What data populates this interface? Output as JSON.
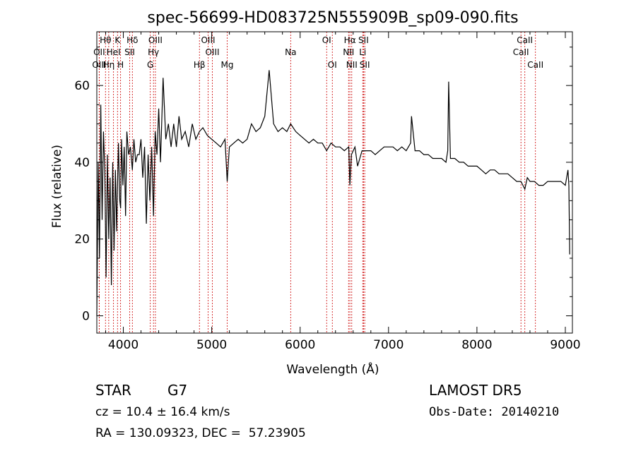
{
  "chart_data": {
    "type": "line",
    "title": "spec-56699-HD083725N555909B_sp09-090.fits",
    "xlabel": "Wavelength (Å)",
    "ylabel": "Flux (relative)",
    "xlim": [
      3700,
      9080
    ],
    "ylim": [
      -4.5,
      74
    ],
    "xticks": [
      4000,
      5000,
      6000,
      7000,
      8000,
      9000
    ],
    "yticks": [
      0,
      20,
      40,
      60
    ],
    "grid": false,
    "line_color": "#000000",
    "marker_color": "#cc0000",
    "spectral_lines": [
      {
        "name": "Hθ",
        "wavelength": 3798,
        "row": 0
      },
      {
        "name": "OII",
        "wavelength": 3727,
        "row": 1
      },
      {
        "name": "OIII",
        "wavelength": 3727,
        "row": 2
      },
      {
        "name": "K",
        "wavelength": 3934,
        "row": 0
      },
      {
        "name": "HeI",
        "wavelength": 3889,
        "row": 1
      },
      {
        "name": "Hη",
        "wavelength": 3835,
        "row": 2
      },
      {
        "name": "H",
        "wavelength": 3969,
        "row": 2
      },
      {
        "name": "Hδ",
        "wavelength": 4102,
        "row": 0
      },
      {
        "name": "SII",
        "wavelength": 4072,
        "row": 1
      },
      {
        "name": "OIII",
        "wavelength": 4363,
        "row": 0
      },
      {
        "name": "Hγ",
        "wavelength": 4341,
        "row": 1
      },
      {
        "name": "G",
        "wavelength": 4305,
        "row": 2
      },
      {
        "name": "OIII",
        "wavelength": 4959,
        "row": 0
      },
      {
        "name": "OIII",
        "wavelength": 5007,
        "row": 1
      },
      {
        "name": "Hβ",
        "wavelength": 4861,
        "row": 2
      },
      {
        "name": "Mg",
        "wavelength": 5175,
        "row": 2
      },
      {
        "name": "Na",
        "wavelength": 5893,
        "row": 1
      },
      {
        "name": "OI",
        "wavelength": 6300,
        "row": 0
      },
      {
        "name": "OI",
        "wavelength": 6364,
        "row": 2
      },
      {
        "name": "Hα",
        "wavelength": 6563,
        "row": 0
      },
      {
        "name": "NII",
        "wavelength": 6548,
        "row": 1
      },
      {
        "name": "NII",
        "wavelength": 6584,
        "row": 2
      },
      {
        "name": "SII",
        "wavelength": 6717,
        "row": 0
      },
      {
        "name": "Li",
        "wavelength": 6708,
        "row": 1
      },
      {
        "name": "SII",
        "wavelength": 6731,
        "row": 2
      },
      {
        "name": "CaII",
        "wavelength": 8542,
        "row": 0
      },
      {
        "name": "CaII",
        "wavelength": 8498,
        "row": 1
      },
      {
        "name": "CaII",
        "wavelength": 8662,
        "row": 2
      }
    ],
    "series": [
      {
        "x": [
          3700,
          3715,
          3730,
          3745,
          3760,
          3775,
          3790,
          3805,
          3820,
          3835,
          3850,
          3865,
          3880,
          3895,
          3910,
          3925,
          3934,
          3945,
          3960,
          3969,
          3980,
          3995,
          4010,
          4025,
          4040,
          4060,
          4080,
          4102,
          4120,
          4140,
          4160,
          4180,
          4200,
          4220,
          4240,
          4260,
          4280,
          4300,
          4320,
          4341,
          4360,
          4380,
          4400,
          4420,
          4450,
          4480,
          4510,
          4540,
          4570,
          4600,
          4630,
          4660,
          4700,
          4740,
          4780,
          4820,
          4861,
          4900,
          4950,
          5000,
          5050,
          5100,
          5150,
          5175,
          5200,
          5250,
          5300,
          5350,
          5400,
          5450,
          5500,
          5550,
          5600,
          5650,
          5700,
          5750,
          5800,
          5850,
          5893,
          5950,
          6000,
          6050,
          6100,
          6150,
          6200,
          6250,
          6300,
          6350,
          6400,
          6450,
          6500,
          6550,
          6563,
          6580,
          6620,
          6650,
          6700,
          6750,
          6800,
          6850,
          6900,
          6950,
          7000,
          7050,
          7100,
          7150,
          7200,
          7250,
          7260,
          7300,
          7350,
          7400,
          7450,
          7500,
          7550,
          7600,
          7650,
          7670,
          7680,
          7700,
          7750,
          7800,
          7850,
          7900,
          7950,
          8000,
          8050,
          8100,
          8150,
          8200,
          8250,
          8300,
          8350,
          8400,
          8450,
          8498,
          8542,
          8570,
          8600,
          8650,
          8700,
          8750,
          8800,
          8850,
          8900,
          8950,
          9000,
          9030,
          9040,
          9050
        ],
        "y": [
          0,
          40,
          15,
          55,
          25,
          48,
          38,
          10,
          42,
          20,
          36,
          8,
          40,
          17,
          38,
          22,
          34,
          45,
          30,
          28,
          46,
          34,
          44,
          26,
          48,
          42,
          44,
          38,
          46,
          40,
          42,
          42,
          46,
          36,
          44,
          24,
          42,
          30,
          44,
          26,
          48,
          42,
          54,
          40,
          62,
          46,
          50,
          44,
          50,
          44,
          52,
          46,
          48,
          44,
          50,
          46,
          48,
          49,
          47,
          46,
          45,
          44,
          46,
          35,
          44,
          45,
          46,
          45,
          46,
          50,
          48,
          49,
          52,
          64,
          50,
          48,
          49,
          48,
          50,
          48,
          47,
          46,
          45,
          46,
          45,
          45,
          43,
          45,
          44,
          44,
          43,
          44,
          34,
          42,
          44,
          39,
          43,
          43,
          43,
          42,
          43,
          44,
          44,
          44,
          43,
          44,
          43,
          45,
          52,
          43,
          43,
          42,
          42,
          41,
          41,
          41,
          40,
          43,
          61,
          41,
          41,
          40,
          40,
          39,
          39,
          39,
          38,
          37,
          38,
          38,
          37,
          37,
          37,
          36,
          35,
          35,
          33,
          36,
          35,
          35,
          34,
          34,
          35,
          35,
          35,
          35,
          34,
          38,
          34,
          16
        ]
      }
    ]
  },
  "info": {
    "star_label": "STAR",
    "class_label": "G7",
    "cz_text": "cz = 10.4 ± 16.4 km/s",
    "radec_text": "RA = 130.09323, DEC =  57.23905",
    "survey_label": "LAMOST DR5",
    "obs_date_text": "Obs-Date: 20140210"
  }
}
